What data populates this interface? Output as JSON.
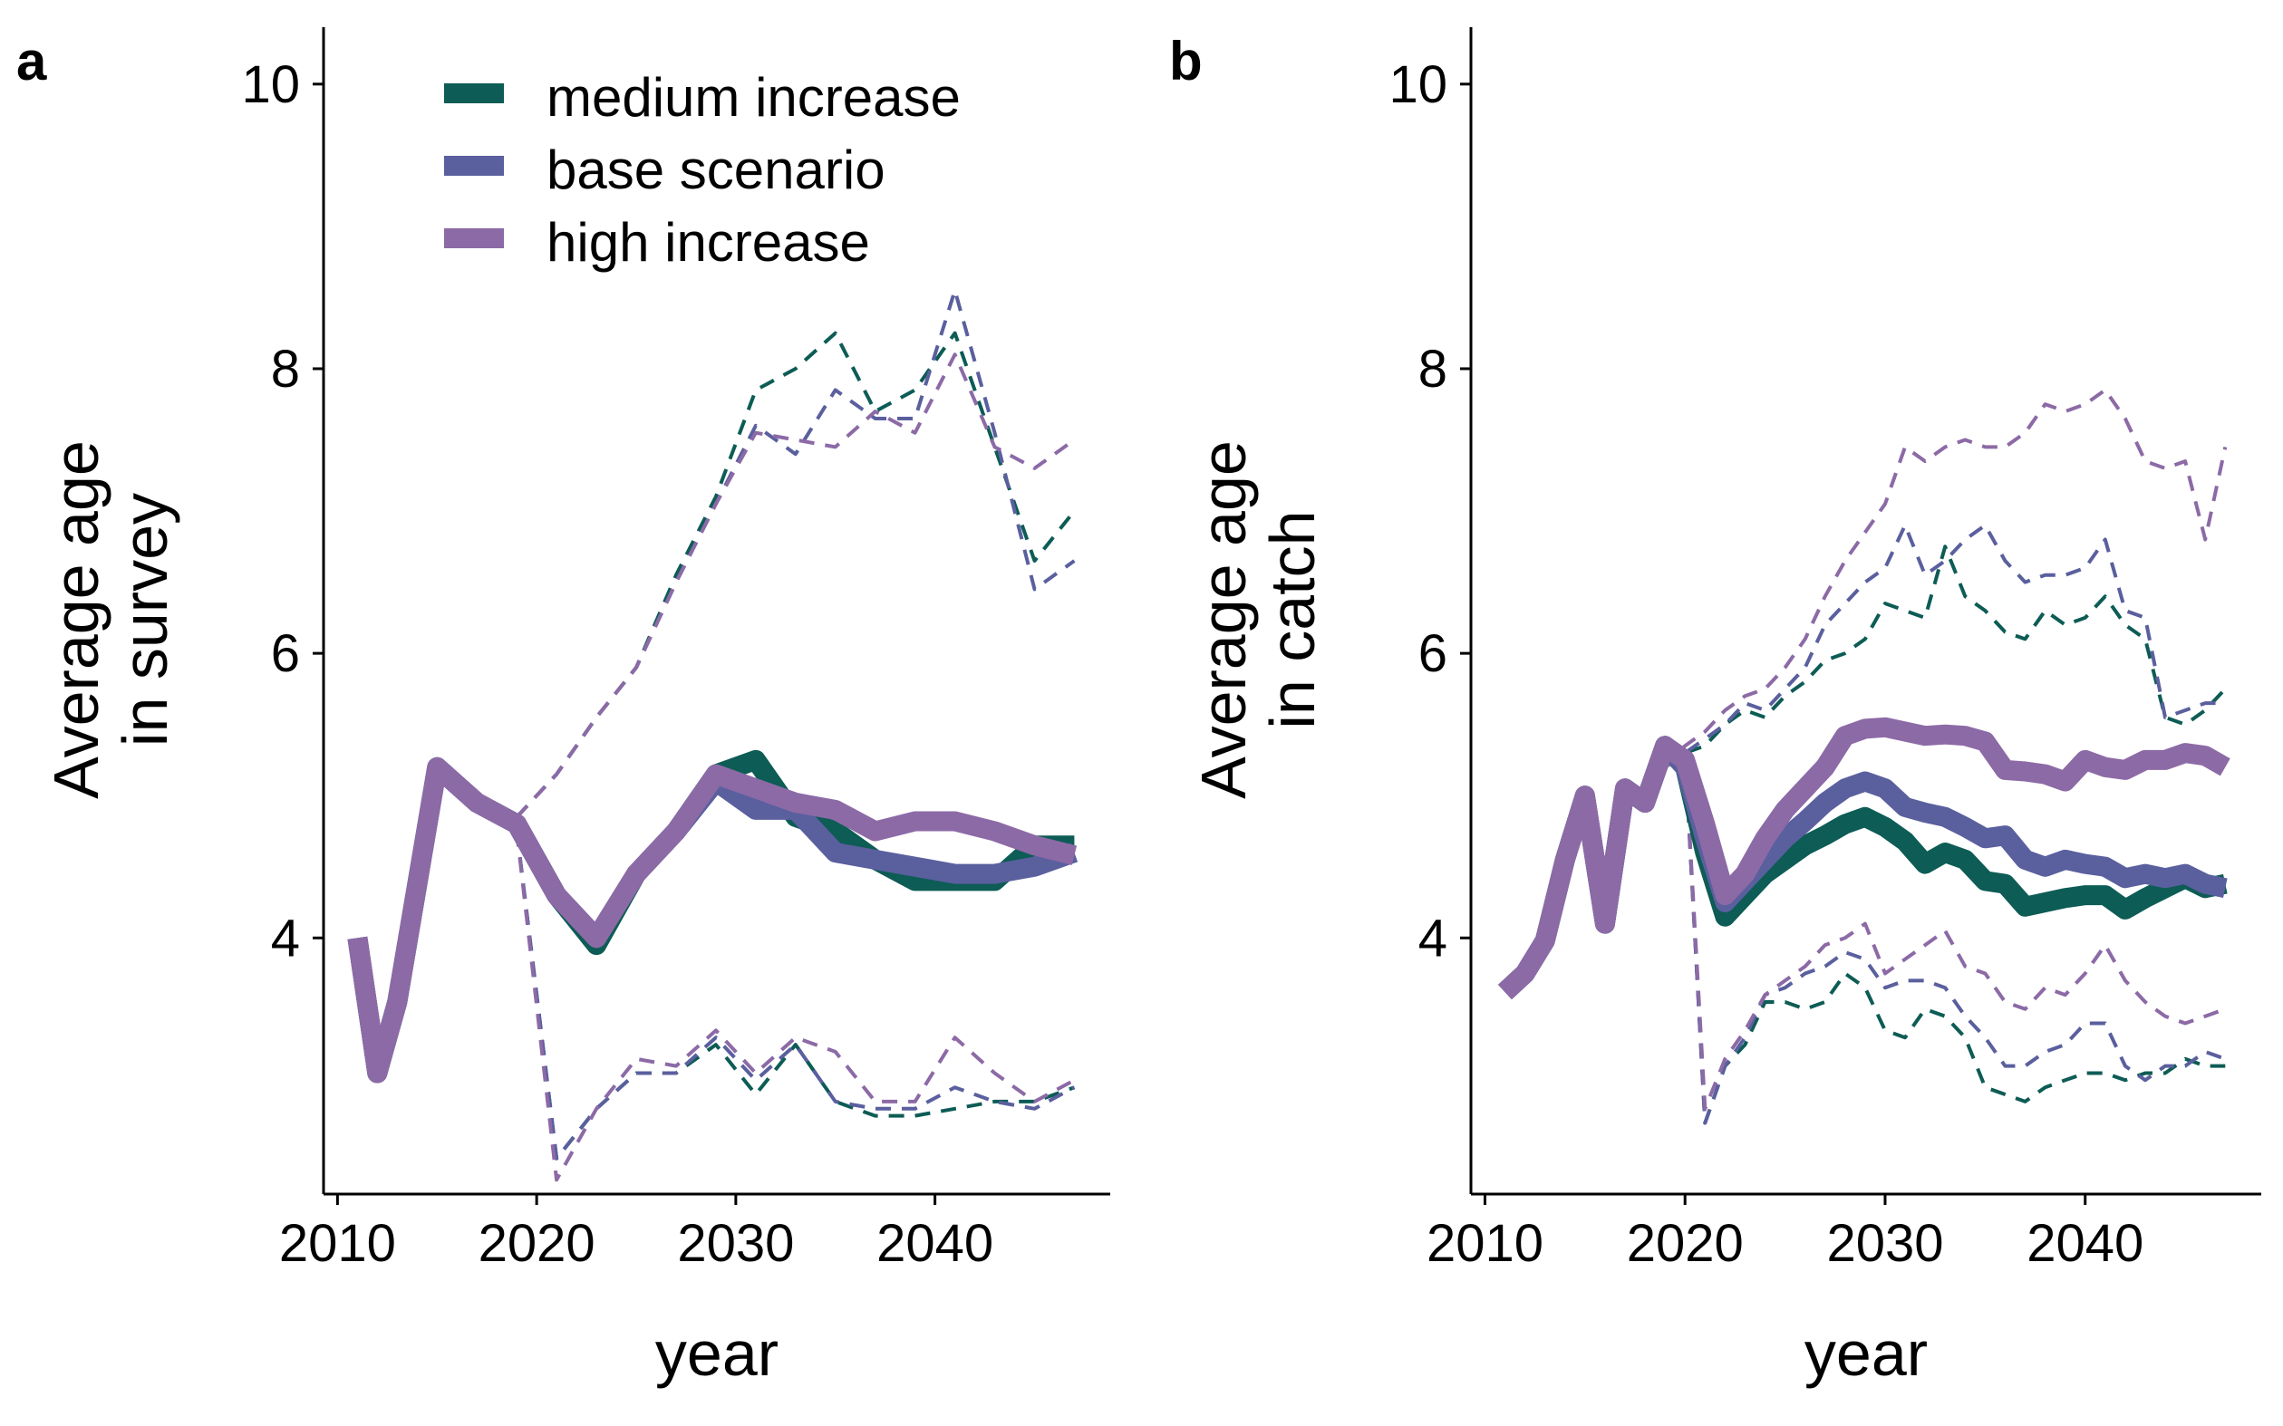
{
  "chart_data": [
    {
      "type": "line",
      "panel_tag": "a",
      "xlabel": "year",
      "ylabel_line1": "Average age",
      "ylabel_line2": "in survey",
      "xlim": [
        2009.3,
        2048.8
      ],
      "ylim": [
        2.2,
        10.4
      ],
      "xticks": [
        2010,
        2020,
        2030,
        2040
      ],
      "xtick_labels": [
        "2010",
        "2020",
        "2030",
        "2040"
      ],
      "yticks": [
        4,
        6,
        8,
        10
      ],
      "ytick_labels": [
        "4",
        "6",
        "8",
        "10"
      ],
      "grid": false,
      "legend": {
        "position": "top-center",
        "entries": [
          {
            "label": "medium increase",
            "color": "#0d5c55"
          },
          {
            "label": "base scenario",
            "color": "#5a5f9e"
          },
          {
            "label": "high increase",
            "color": "#8c6aa6"
          }
        ]
      },
      "series": [
        {
          "name": "medium increase",
          "color": "#0d5c55",
          "style": "solid",
          "x": [
            2011,
            2012,
            2013,
            2015,
            2017,
            2019,
            2021,
            2023,
            2025,
            2027,
            2029,
            2031,
            2033,
            2035,
            2037,
            2039,
            2041,
            2043,
            2045,
            2047
          ],
          "y": [
            4.0,
            3.05,
            3.55,
            5.2,
            4.95,
            4.8,
            4.3,
            3.95,
            4.45,
            4.75,
            5.15,
            5.25,
            4.85,
            4.75,
            4.55,
            4.4,
            4.4,
            4.4,
            4.65,
            4.65
          ]
        },
        {
          "name": "base scenario",
          "color": "#5a5f9e",
          "style": "solid",
          "x": [
            2011,
            2012,
            2013,
            2015,
            2017,
            2019,
            2021,
            2023,
            2025,
            2027,
            2029,
            2031,
            2033,
            2035,
            2037,
            2039,
            2041,
            2043,
            2045,
            2047
          ],
          "y": [
            4.0,
            3.05,
            3.55,
            5.2,
            4.95,
            4.8,
            4.3,
            4.0,
            4.45,
            4.75,
            5.1,
            4.9,
            4.9,
            4.6,
            4.55,
            4.5,
            4.45,
            4.45,
            4.5,
            4.6
          ]
        },
        {
          "name": "high increase",
          "color": "#8c6aa6",
          "style": "solid",
          "x": [
            2011,
            2012,
            2013,
            2015,
            2017,
            2019,
            2021,
            2023,
            2025,
            2027,
            2029,
            2031,
            2033,
            2035,
            2037,
            2039,
            2041,
            2043,
            2045,
            2047
          ],
          "y": [
            4.0,
            3.05,
            3.55,
            5.2,
            4.95,
            4.8,
            4.3,
            4.0,
            4.45,
            4.75,
            5.15,
            5.05,
            4.95,
            4.9,
            4.75,
            4.82,
            4.82,
            4.75,
            4.65,
            4.58
          ]
        },
        {
          "color": "#0d5c55",
          "style": "dashed",
          "x": [
            2019,
            2021,
            2023,
            2025,
            2027,
            2029,
            2031,
            2033,
            2035,
            2037,
            2039,
            2041,
            2043,
            2045,
            2047
          ],
          "y": [
            4.85,
            5.15,
            5.55,
            5.9,
            6.55,
            7.1,
            7.85,
            8.0,
            8.25,
            7.7,
            7.85,
            8.25,
            7.45,
            6.65,
            7.0
          ]
        },
        {
          "color": "#5a5f9e",
          "style": "dashed",
          "x": [
            2019,
            2021,
            2023,
            2025,
            2027,
            2029,
            2031,
            2033,
            2035,
            2037,
            2039,
            2041,
            2043,
            2045,
            2047
          ],
          "y": [
            4.85,
            5.15,
            5.55,
            5.9,
            6.5,
            7.05,
            7.6,
            7.4,
            7.85,
            7.65,
            7.65,
            8.55,
            7.55,
            6.45,
            6.65
          ]
        },
        {
          "color": "#8c6aa6",
          "style": "dashed",
          "x": [
            2019,
            2021,
            2023,
            2025,
            2027,
            2029,
            2031,
            2033,
            2035,
            2037,
            2039,
            2041,
            2043,
            2045,
            2047
          ],
          "y": [
            4.85,
            5.15,
            5.55,
            5.9,
            6.5,
            7.05,
            7.55,
            7.5,
            7.45,
            7.7,
            7.55,
            8.1,
            7.45,
            7.3,
            7.5
          ]
        },
        {
          "color": "#0d5c55",
          "style": "dashed",
          "x": [
            2019,
            2021,
            2023,
            2025,
            2027,
            2029,
            2031,
            2033,
            2035,
            2037,
            2039,
            2041,
            2043,
            2045,
            2047
          ],
          "y": [
            4.75,
            2.45,
            2.8,
            3.05,
            3.05,
            3.25,
            2.9,
            3.25,
            2.85,
            2.75,
            2.75,
            2.8,
            2.85,
            2.85,
            2.95
          ]
        },
        {
          "color": "#5a5f9e",
          "style": "dashed",
          "x": [
            2019,
            2021,
            2023,
            2025,
            2027,
            2029,
            2031,
            2033,
            2035,
            2037,
            2039,
            2041,
            2043,
            2045,
            2047
          ],
          "y": [
            4.75,
            2.45,
            2.8,
            3.05,
            3.05,
            3.3,
            3.0,
            3.25,
            2.85,
            2.8,
            2.8,
            2.95,
            2.85,
            2.8,
            2.95
          ]
        },
        {
          "color": "#8c6aa6",
          "style": "dashed",
          "x": [
            2019,
            2021,
            2023,
            2025,
            2027,
            2029,
            2031,
            2033,
            2035,
            2037,
            2039,
            2041,
            2043,
            2045,
            2047
          ],
          "y": [
            4.75,
            2.3,
            2.8,
            3.15,
            3.1,
            3.35,
            3.05,
            3.3,
            3.2,
            2.85,
            2.85,
            3.3,
            3.05,
            2.85,
            3.0
          ]
        }
      ]
    },
    {
      "type": "line",
      "panel_tag": "b",
      "xlabel": "year",
      "ylabel_line1": "Average age",
      "ylabel_line2": "in catch",
      "xlim": [
        2009.3,
        2048.8
      ],
      "ylim": [
        2.2,
        10.4
      ],
      "xticks": [
        2010,
        2020,
        2030,
        2040
      ],
      "xtick_labels": [
        "2010",
        "2020",
        "2030",
        "2040"
      ],
      "yticks": [
        4,
        6,
        8,
        10
      ],
      "ytick_labels": [
        "4",
        "6",
        "8",
        "10"
      ],
      "grid": false,
      "series": [
        {
          "name": "medium increase",
          "color": "#0d5c55",
          "style": "solid",
          "x": [
            2011,
            2012,
            2013,
            2014,
            2015,
            2016,
            2017,
            2018,
            2019,
            2020,
            2021,
            2022,
            2023,
            2024,
            2025,
            2026,
            2027,
            2028,
            2029,
            2030,
            2031,
            2032,
            2033,
            2034,
            2035,
            2036,
            2037,
            2038,
            2039,
            2040,
            2041,
            2042,
            2043,
            2044,
            2045,
            2046,
            2047
          ],
          "y": [
            3.62,
            3.75,
            3.98,
            4.55,
            5.0,
            4.1,
            5.05,
            4.95,
            5.35,
            5.2,
            4.6,
            4.15,
            4.3,
            4.45,
            4.55,
            4.65,
            4.72,
            4.8,
            4.85,
            4.78,
            4.68,
            4.52,
            4.6,
            4.55,
            4.4,
            4.38,
            4.22,
            4.25,
            4.28,
            4.3,
            4.3,
            4.2,
            4.28,
            4.35,
            4.42,
            4.35,
            4.38
          ]
        },
        {
          "name": "base scenario",
          "color": "#5a5f9e",
          "style": "solid",
          "x": [
            2011,
            2012,
            2013,
            2014,
            2015,
            2016,
            2017,
            2018,
            2019,
            2020,
            2021,
            2022,
            2023,
            2024,
            2025,
            2026,
            2027,
            2028,
            2029,
            2030,
            2031,
            2032,
            2033,
            2034,
            2035,
            2036,
            2037,
            2038,
            2039,
            2040,
            2041,
            2042,
            2043,
            2044,
            2045,
            2046,
            2047
          ],
          "y": [
            3.62,
            3.75,
            3.98,
            4.55,
            5.0,
            4.1,
            5.05,
            4.95,
            5.35,
            5.2,
            4.7,
            4.25,
            4.4,
            4.55,
            4.7,
            4.82,
            4.95,
            5.05,
            5.1,
            5.05,
            4.92,
            4.88,
            4.85,
            4.78,
            4.7,
            4.72,
            4.55,
            4.5,
            4.55,
            4.52,
            4.5,
            4.42,
            4.45,
            4.42,
            4.45,
            4.38,
            4.35
          ]
        },
        {
          "name": "high increase",
          "color": "#8c6aa6",
          "style": "solid",
          "x": [
            2011,
            2012,
            2013,
            2014,
            2015,
            2016,
            2017,
            2018,
            2019,
            2020,
            2021,
            2022,
            2023,
            2024,
            2025,
            2026,
            2027,
            2028,
            2029,
            2030,
            2031,
            2032,
            2033,
            2034,
            2035,
            2036,
            2037,
            2038,
            2039,
            2040,
            2041,
            2042,
            2043,
            2044,
            2045,
            2046,
            2047
          ],
          "y": [
            3.62,
            3.75,
            3.98,
            4.55,
            5.0,
            4.1,
            5.05,
            4.95,
            5.35,
            5.25,
            4.8,
            4.3,
            4.45,
            4.7,
            4.9,
            5.05,
            5.2,
            5.42,
            5.47,
            5.48,
            5.45,
            5.42,
            5.43,
            5.42,
            5.38,
            5.18,
            5.17,
            5.15,
            5.1,
            5.25,
            5.2,
            5.18,
            5.25,
            5.25,
            5.3,
            5.28,
            5.2
          ]
        },
        {
          "color": "#0d5c55",
          "style": "dashed",
          "x": [
            2019,
            2020,
            2021,
            2022,
            2023,
            2024,
            2025,
            2026,
            2027,
            2028,
            2029,
            2030,
            2031,
            2032,
            2033,
            2034,
            2035,
            2036,
            2037,
            2038,
            2039,
            2040,
            2041,
            2042,
            2043,
            2044,
            2045,
            2046,
            2047
          ],
          "y": [
            5.2,
            5.3,
            5.35,
            5.5,
            5.6,
            5.55,
            5.7,
            5.8,
            5.95,
            6.0,
            6.1,
            6.35,
            6.3,
            6.25,
            6.75,
            6.4,
            6.3,
            6.15,
            6.1,
            6.3,
            6.2,
            6.25,
            6.4,
            6.2,
            6.1,
            5.55,
            5.5,
            5.6,
            5.75
          ]
        },
        {
          "color": "#5a5f9e",
          "style": "dashed",
          "x": [
            2019,
            2020,
            2021,
            2022,
            2023,
            2024,
            2025,
            2026,
            2027,
            2028,
            2029,
            2030,
            2031,
            2032,
            2033,
            2034,
            2035,
            2036,
            2037,
            2038,
            2039,
            2040,
            2041,
            2042,
            2043,
            2044,
            2045,
            2046,
            2047
          ],
          "y": [
            5.2,
            5.3,
            5.4,
            5.5,
            5.65,
            5.6,
            5.75,
            5.9,
            6.2,
            6.35,
            6.5,
            6.6,
            6.9,
            6.55,
            6.65,
            6.8,
            6.9,
            6.65,
            6.5,
            6.55,
            6.55,
            6.6,
            6.8,
            6.3,
            6.25,
            5.55,
            5.6,
            5.65,
            5.65
          ]
        },
        {
          "color": "#8c6aa6",
          "style": "dashed",
          "x": [
            2019,
            2020,
            2021,
            2022,
            2023,
            2024,
            2025,
            2026,
            2027,
            2028,
            2029,
            2030,
            2031,
            2032,
            2033,
            2034,
            2035,
            2036,
            2037,
            2038,
            2039,
            2040,
            2041,
            2042,
            2043,
            2044,
            2045,
            2046,
            2047
          ],
          "y": [
            5.2,
            5.35,
            5.45,
            5.6,
            5.7,
            5.75,
            5.9,
            6.1,
            6.4,
            6.65,
            6.85,
            7.05,
            7.45,
            7.35,
            7.45,
            7.5,
            7.45,
            7.45,
            7.55,
            7.75,
            7.7,
            7.75,
            7.85,
            7.65,
            7.35,
            7.3,
            7.35,
            6.8,
            7.45
          ]
        },
        {
          "color": "#0d5c55",
          "style": "dashed",
          "x": [
            2019,
            2020,
            2021,
            2022,
            2023,
            2024,
            2025,
            2026,
            2027,
            2028,
            2029,
            2030,
            2031,
            2032,
            2033,
            2034,
            2035,
            2036,
            2037,
            2038,
            2039,
            2040,
            2041,
            2042,
            2043,
            2044,
            2045,
            2046,
            2047
          ],
          "y": [
            5.2,
            5.3,
            2.7,
            3.1,
            3.25,
            3.55,
            3.55,
            3.5,
            3.55,
            3.75,
            3.65,
            3.35,
            3.3,
            3.5,
            3.45,
            3.3,
            2.95,
            2.9,
            2.85,
            2.95,
            3.0,
            3.05,
            3.05,
            3.0,
            3.05,
            3.05,
            3.15,
            3.1,
            3.1
          ]
        },
        {
          "color": "#5a5f9e",
          "style": "dashed",
          "x": [
            2019,
            2020,
            2021,
            2022,
            2023,
            2024,
            2025,
            2026,
            2027,
            2028,
            2029,
            2030,
            2031,
            2032,
            2033,
            2034,
            2035,
            2036,
            2037,
            2038,
            2039,
            2040,
            2041,
            2042,
            2043,
            2044,
            2045,
            2046,
            2047
          ],
          "y": [
            5.2,
            5.3,
            2.7,
            3.1,
            3.3,
            3.6,
            3.65,
            3.75,
            3.8,
            3.9,
            3.85,
            3.65,
            3.7,
            3.7,
            3.65,
            3.45,
            3.3,
            3.1,
            3.1,
            3.2,
            3.25,
            3.4,
            3.4,
            3.1,
            3.0,
            3.1,
            3.1,
            3.2,
            3.15
          ]
        },
        {
          "color": "#8c6aa6",
          "style": "dashed",
          "x": [
            2019,
            2020,
            2021,
            2022,
            2023,
            2024,
            2025,
            2026,
            2027,
            2028,
            2029,
            2030,
            2031,
            2032,
            2033,
            2034,
            2035,
            2036,
            2037,
            2038,
            2039,
            2040,
            2041,
            2042,
            2043,
            2044,
            2045,
            2046,
            2047
          ],
          "y": [
            5.2,
            5.3,
            2.8,
            3.15,
            3.35,
            3.6,
            3.7,
            3.8,
            3.95,
            4.0,
            4.1,
            3.75,
            3.85,
            3.95,
            4.05,
            3.8,
            3.75,
            3.55,
            3.5,
            3.65,
            3.6,
            3.75,
            3.95,
            3.7,
            3.55,
            3.45,
            3.4,
            3.45,
            3.5
          ]
        }
      ]
    }
  ]
}
